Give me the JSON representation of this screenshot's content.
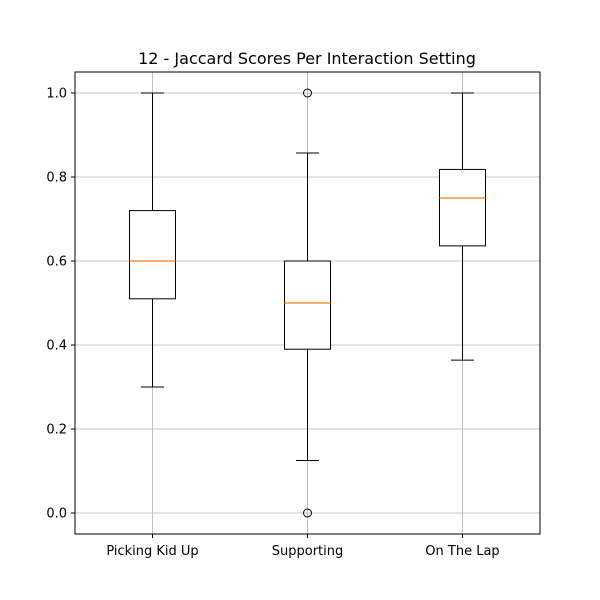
{
  "chart_data": {
    "type": "box",
    "title": "12 - Jaccard Scores Per Interaction Setting",
    "xlabel": "",
    "ylabel": "",
    "ylim": [
      -0.05,
      1.05
    ],
    "yticks": [
      0.0,
      0.2,
      0.4,
      0.6,
      0.8,
      1.0
    ],
    "ytick_labels": [
      "0.0",
      "0.2",
      "0.4",
      "0.6",
      "0.8",
      "1.0"
    ],
    "grid": true,
    "categories": [
      "Picking Kid Up",
      "Supporting",
      "On The Lap"
    ],
    "boxes": [
      {
        "name": "Picking Kid Up",
        "whisker_low": 0.3,
        "q1": 0.51,
        "median": 0.6,
        "q3": 0.72,
        "whisker_high": 1.0,
        "outliers": []
      },
      {
        "name": "Supporting",
        "whisker_low": 0.125,
        "q1": 0.39,
        "median": 0.5,
        "q3": 0.6,
        "whisker_high": 0.857,
        "outliers": [
          1.0,
          0.0
        ]
      },
      {
        "name": "On The Lap",
        "whisker_low": 0.364,
        "q1": 0.636,
        "median": 0.75,
        "q3": 0.818,
        "whisker_high": 1.0,
        "outliers": []
      }
    ],
    "colors": {
      "box": "#000000",
      "median": "#ff7f0e",
      "grid": "#b0b0b0"
    }
  }
}
